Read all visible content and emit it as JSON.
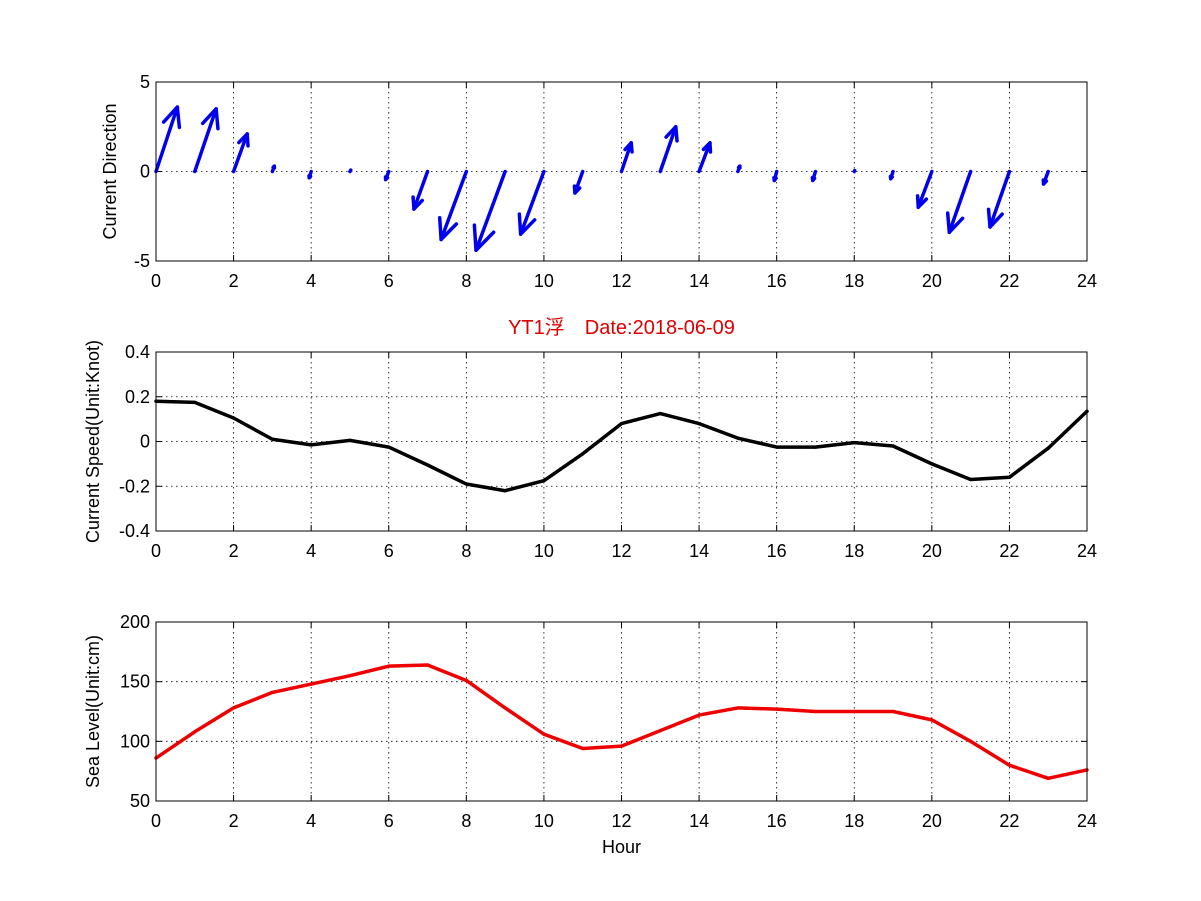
{
  "chart_data": [
    {
      "type": "quiver",
      "ylabel": "Current Direction",
      "xlim": [
        0,
        24
      ],
      "ylim": [
        -5,
        5
      ],
      "xticks": [
        0,
        2,
        4,
        6,
        8,
        10,
        12,
        14,
        16,
        18,
        20,
        22,
        24
      ],
      "yticks": [
        -5,
        0,
        5
      ],
      "grid": true,
      "arrow_color": "#0000ee",
      "vectors": [
        {
          "x": 0,
          "u": 0.55,
          "v": 3.6
        },
        {
          "x": 1,
          "u": 0.55,
          "v": 3.5
        },
        {
          "x": 2,
          "u": 0.35,
          "v": 2.1
        },
        {
          "x": 3,
          "u": 0.05,
          "v": 0.3
        },
        {
          "x": 4,
          "u": -0.05,
          "v": -0.35
        },
        {
          "x": 5,
          "u": 0.02,
          "v": 0.08
        },
        {
          "x": 6,
          "u": -0.08,
          "v": -0.45
        },
        {
          "x": 7,
          "u": -0.35,
          "v": -2.1
        },
        {
          "x": 8,
          "u": -0.65,
          "v": -3.8
        },
        {
          "x": 9,
          "u": -0.75,
          "v": -4.4
        },
        {
          "x": 10,
          "u": -0.6,
          "v": -3.5
        },
        {
          "x": 11,
          "u": -0.2,
          "v": -1.2
        },
        {
          "x": 12,
          "u": 0.25,
          "v": 1.6
        },
        {
          "x": 13,
          "u": 0.4,
          "v": 2.5
        },
        {
          "x": 14,
          "u": 0.28,
          "v": 1.6
        },
        {
          "x": 15,
          "u": 0.05,
          "v": 0.3
        },
        {
          "x": 16,
          "u": -0.06,
          "v": -0.5
        },
        {
          "x": 17,
          "u": -0.07,
          "v": -0.5
        },
        {
          "x": 18,
          "u": 0.01,
          "v": 0.05
        },
        {
          "x": 19,
          "u": -0.06,
          "v": -0.4
        },
        {
          "x": 20,
          "u": -0.35,
          "v": -2.0
        },
        {
          "x": 21,
          "u": -0.55,
          "v": -3.4
        },
        {
          "x": 22,
          "u": -0.5,
          "v": -3.1
        },
        {
          "x": 23,
          "u": -0.12,
          "v": -0.7
        }
      ]
    },
    {
      "type": "line",
      "title": "YT1浮　Date:2018-06-09",
      "ylabel": "Current Speed(Unit:Knot)",
      "xlim": [
        0,
        24
      ],
      "ylim": [
        -0.4,
        0.4
      ],
      "xticks": [
        0,
        2,
        4,
        6,
        8,
        10,
        12,
        14,
        16,
        18,
        20,
        22,
        24
      ],
      "yticks": [
        -0.4,
        -0.2,
        0,
        0.2,
        0.4
      ],
      "grid": true,
      "series": [
        {
          "color": "#000000",
          "x": [
            0,
            1,
            2,
            3,
            4,
            5,
            6,
            7,
            8,
            9,
            10,
            11,
            12,
            13,
            14,
            15,
            16,
            17,
            18,
            19,
            20,
            21,
            22,
            23,
            24
          ],
          "y": [
            0.18,
            0.175,
            0.105,
            0.01,
            -0.015,
            0.005,
            -0.025,
            -0.105,
            -0.19,
            -0.22,
            -0.175,
            -0.055,
            0.08,
            0.125,
            0.08,
            0.015,
            -0.025,
            -0.025,
            -0.005,
            -0.02,
            -0.1,
            -0.17,
            -0.16,
            -0.03,
            0.135
          ]
        }
      ]
    },
    {
      "type": "line",
      "xlabel": "Hour",
      "ylabel": "Sea Level(Unit:cm)",
      "xlim": [
        0,
        24
      ],
      "ylim": [
        50,
        200
      ],
      "xticks": [
        0,
        2,
        4,
        6,
        8,
        10,
        12,
        14,
        16,
        18,
        20,
        22,
        24
      ],
      "yticks": [
        50,
        100,
        150,
        200
      ],
      "grid": true,
      "series": [
        {
          "color": "#ee0000",
          "x": [
            0,
            1,
            2,
            3,
            4,
            5,
            6,
            7,
            8,
            9,
            10,
            11,
            12,
            13,
            14,
            15,
            16,
            17,
            18,
            19,
            20,
            21,
            22,
            23,
            24
          ],
          "y": [
            86,
            108,
            128,
            141,
            148,
            155,
            163,
            164,
            151,
            128,
            106,
            94,
            96,
            109,
            122,
            128,
            127,
            125,
            125,
            125,
            118,
            100,
            80,
            69,
            76
          ]
        }
      ]
    }
  ]
}
